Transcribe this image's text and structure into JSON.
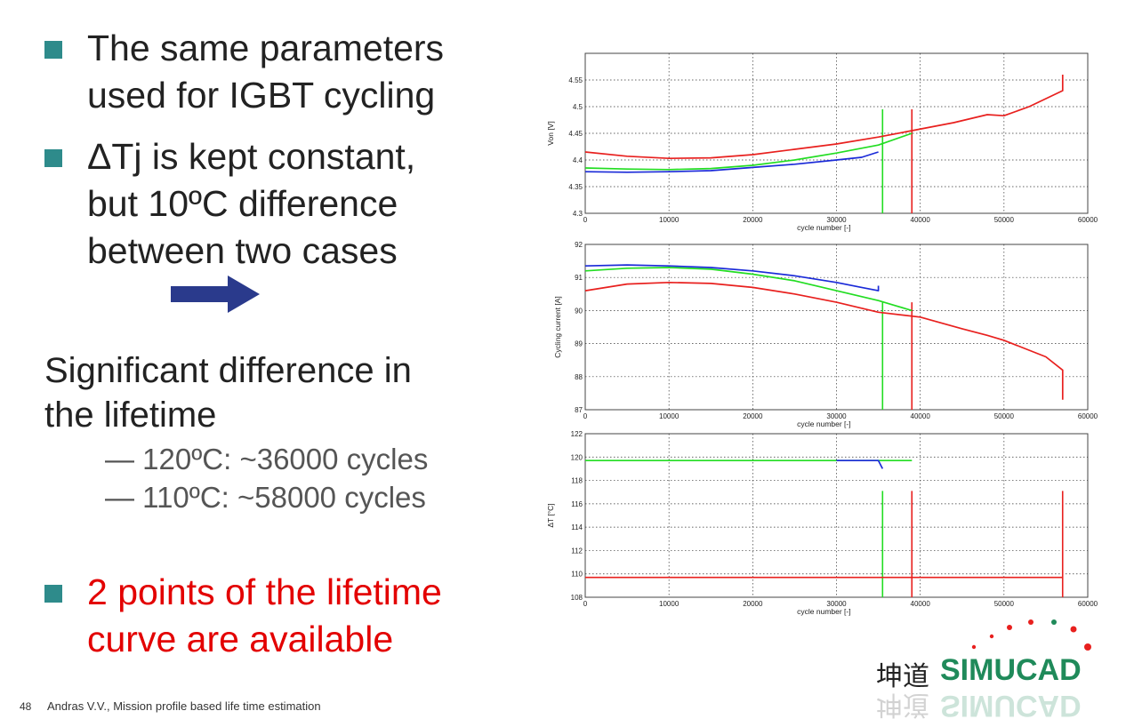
{
  "bullets": [
    {
      "text": "The same parameters\nused for IGBT cycling",
      "color": "#222222"
    },
    {
      "text": "ΔTj is kept constant,\nbut 10ºC difference\nbetween two cases",
      "color": "#222222"
    },
    {
      "text": "2 points of the lifetime\ncurve are available",
      "color": "#e30000"
    }
  ],
  "bullet_square_color": "#2e8b8b",
  "arrow_color": "#2a3a8c",
  "significant": "Significant difference in\nthe lifetime",
  "sub_items": [
    "— 120ºC: ~36000 cycles",
    "— 110ºC: ~58000 cycles"
  ],
  "footer": {
    "page": "48",
    "text": "Andras V.V., Mission profile based life time estimation"
  },
  "logo": {
    "brand": "SIMUCAD",
    "chinese": "坤道"
  },
  "chart_data": [
    {
      "type": "line",
      "xlabel": "cycle number [-]",
      "ylabel": "Von [V]",
      "xlim": [
        0,
        60000
      ],
      "ylim": [
        4.3,
        4.6
      ],
      "xticks": [
        "0",
        "10000",
        "20000",
        "30000",
        "40000",
        "50000",
        "60000"
      ],
      "yticks": [
        "4.3",
        "4.35",
        "4.4",
        "4.45",
        "4.5",
        "4.55"
      ],
      "grid": true,
      "series": [
        {
          "color": "#e8201e",
          "x": [
            0,
            5000,
            10000,
            15000,
            20000,
            25000,
            30000,
            35000,
            39000,
            44000,
            48000,
            50000,
            53000,
            57000,
            57000
          ],
          "y": [
            4.415,
            4.407,
            4.403,
            4.404,
            4.41,
            4.42,
            4.43,
            4.443,
            4.455,
            4.47,
            4.485,
            4.483,
            4.5,
            4.53,
            4.56
          ]
        },
        {
          "color": "#22dd22",
          "x": [
            0,
            5000,
            10000,
            15000,
            20000,
            25000,
            30000,
            35000,
            39000
          ],
          "y": [
            4.385,
            4.383,
            4.382,
            4.384,
            4.39,
            4.4,
            4.413,
            4.428,
            4.45
          ]
        },
        {
          "color": "#1a2ad8",
          "x": [
            0,
            5000,
            10000,
            15000,
            20000,
            25000,
            30000,
            33000,
            35000
          ],
          "y": [
            4.378,
            4.377,
            4.378,
            4.38,
            4.386,
            4.392,
            4.4,
            4.405,
            4.415
          ]
        }
      ],
      "drops": [
        {
          "x": 35500,
          "color": "#22dd22"
        },
        {
          "x": 39000,
          "color": "#e8201e"
        }
      ]
    },
    {
      "type": "line",
      "xlabel": "cycle number [-]",
      "ylabel": "Cycling current [A]",
      "xlim": [
        0,
        60000
      ],
      "ylim": [
        87,
        92
      ],
      "xticks": [
        "0",
        "10000",
        "20000",
        "30000",
        "40000",
        "50000",
        "60000"
      ],
      "yticks": [
        "87",
        "88",
        "89",
        "90",
        "91",
        "92"
      ],
      "grid": true,
      "series": [
        {
          "color": "#e8201e",
          "x": [
            0,
            5000,
            10000,
            15000,
            20000,
            25000,
            30000,
            35000,
            40000,
            45000,
            48000,
            50000,
            55000,
            57000,
            57000
          ],
          "y": [
            90.6,
            90.8,
            90.85,
            90.82,
            90.7,
            90.5,
            90.25,
            89.95,
            89.8,
            89.45,
            89.25,
            89.1,
            88.6,
            88.2,
            87.3
          ]
        },
        {
          "color": "#22dd22",
          "x": [
            0,
            5000,
            10000,
            15000,
            20000,
            25000,
            30000,
            35000,
            37000,
            39000
          ],
          "y": [
            91.2,
            91.28,
            91.3,
            91.25,
            91.1,
            90.9,
            90.6,
            90.3,
            90.15,
            90.0
          ]
        },
        {
          "color": "#1a2ad8",
          "x": [
            0,
            5000,
            10000,
            15000,
            20000,
            25000,
            30000,
            33000,
            35000,
            35000
          ],
          "y": [
            91.35,
            91.38,
            91.35,
            91.3,
            91.2,
            91.05,
            90.85,
            90.7,
            90.6,
            90.75
          ]
        }
      ],
      "drops": [
        {
          "x": 35500,
          "color": "#22dd22"
        },
        {
          "x": 39000,
          "color": "#e8201e"
        }
      ]
    },
    {
      "type": "line",
      "xlabel": "cycle number [-]",
      "ylabel": "ΔT [°C]",
      "xlim": [
        0,
        60000
      ],
      "ylim": [
        108,
        122
      ],
      "xticks": [
        "0",
        "10000",
        "20000",
        "30000",
        "40000",
        "50000",
        "60000"
      ],
      "yticks": [
        "108",
        "110",
        "112",
        "114",
        "116",
        "118",
        "120",
        "122"
      ],
      "grid": true,
      "series": [
        {
          "color": "#e8201e",
          "x": [
            0,
            10000,
            20000,
            30000,
            39000,
            45000,
            57000
          ],
          "y": [
            109.7,
            109.7,
            109.7,
            109.7,
            109.7,
            109.7,
            109.7
          ]
        },
        {
          "color": "#22dd22",
          "x": [
            0,
            10000,
            20000,
            30000,
            35500,
            39000
          ],
          "y": [
            119.7,
            119.7,
            119.7,
            119.7,
            119.7,
            119.7
          ]
        },
        {
          "color": "#1a2ad8",
          "x": [
            30000,
            35000,
            35500
          ],
          "y": [
            119.7,
            119.7,
            119.0
          ]
        }
      ],
      "drops": [
        {
          "x": 35500,
          "color": "#22dd22"
        },
        {
          "x": 39000,
          "color": "#e8201e"
        },
        {
          "x": 57000,
          "color": "#e8201e"
        }
      ]
    }
  ]
}
